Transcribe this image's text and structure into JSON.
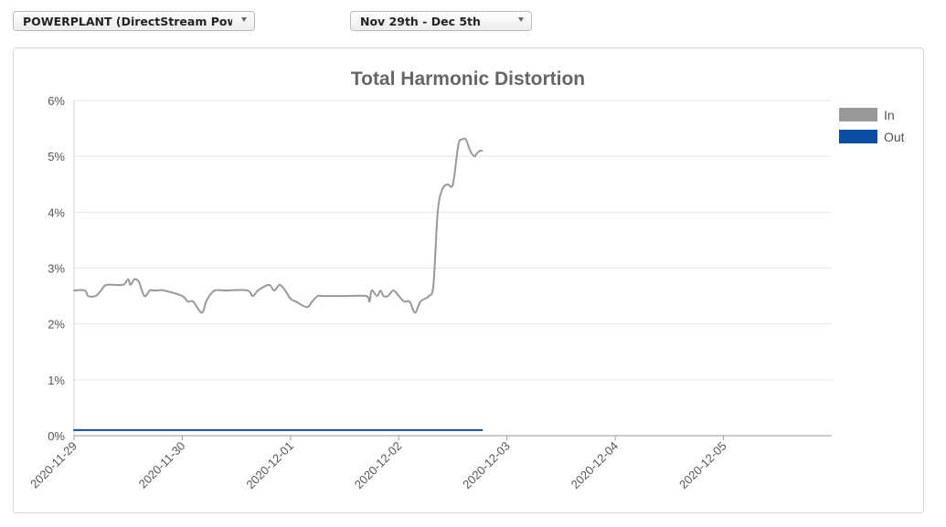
{
  "filters": {
    "plant_label": "POWERPLANT (DirectStream Powe...",
    "range_label": "Nov 29th - Dec 5th"
  },
  "chart_data": {
    "type": "line",
    "title": "Total Harmonic Distortion",
    "xlabel": "",
    "ylabel": "",
    "x_ticks": [
      "2020-11-29",
      "2020-11-30",
      "2020-12-01",
      "2020-12-02",
      "2020-12-03",
      "2020-12-04",
      "2020-12-05"
    ],
    "xlim_days": [
      0,
      7
    ],
    "y_ticks": [
      "0%",
      "1%",
      "2%",
      "3%",
      "4%",
      "5%",
      "6%"
    ],
    "ylim": [
      0,
      6
    ],
    "grid": true,
    "legend_position": "top-right",
    "series": [
      {
        "name": "In",
        "color": "#999999",
        "x": [
          0.0,
          0.1,
          0.13,
          0.2,
          0.25,
          0.3,
          0.45,
          0.5,
          0.52,
          0.56,
          0.6,
          0.65,
          0.7,
          0.73,
          0.78,
          0.83,
          1.0,
          1.05,
          1.1,
          1.18,
          1.22,
          1.25,
          1.3,
          1.4,
          1.6,
          1.65,
          1.7,
          1.8,
          1.85,
          1.9,
          1.95,
          2.0,
          2.05,
          2.15,
          2.2,
          2.25,
          2.3,
          2.5,
          2.7,
          2.73,
          2.75,
          2.8,
          2.83,
          2.86,
          2.9,
          2.95,
          3.0,
          3.05,
          3.1,
          3.15,
          3.2,
          3.28,
          3.32,
          3.36,
          3.4,
          3.45,
          3.5,
          3.55,
          3.58,
          3.62,
          3.66,
          3.7,
          3.72,
          3.75,
          3.77
        ],
        "y": [
          2.6,
          2.6,
          2.5,
          2.5,
          2.6,
          2.7,
          2.7,
          2.8,
          2.7,
          2.8,
          2.75,
          2.5,
          2.6,
          2.6,
          2.6,
          2.6,
          2.5,
          2.4,
          2.4,
          2.2,
          2.4,
          2.5,
          2.6,
          2.6,
          2.6,
          2.5,
          2.6,
          2.7,
          2.6,
          2.7,
          2.6,
          2.45,
          2.4,
          2.3,
          2.4,
          2.5,
          2.5,
          2.5,
          2.5,
          2.4,
          2.6,
          2.5,
          2.6,
          2.5,
          2.5,
          2.6,
          2.5,
          2.4,
          2.4,
          2.2,
          2.4,
          2.5,
          2.7,
          4.0,
          4.4,
          4.5,
          4.5,
          5.2,
          5.3,
          5.3,
          5.1,
          5.0,
          5.05,
          5.1,
          5.1
        ]
      },
      {
        "name": "Out",
        "color": "#0a4ea3",
        "x": [
          0.0,
          3.77
        ],
        "y": [
          0.1,
          0.1
        ]
      }
    ]
  }
}
